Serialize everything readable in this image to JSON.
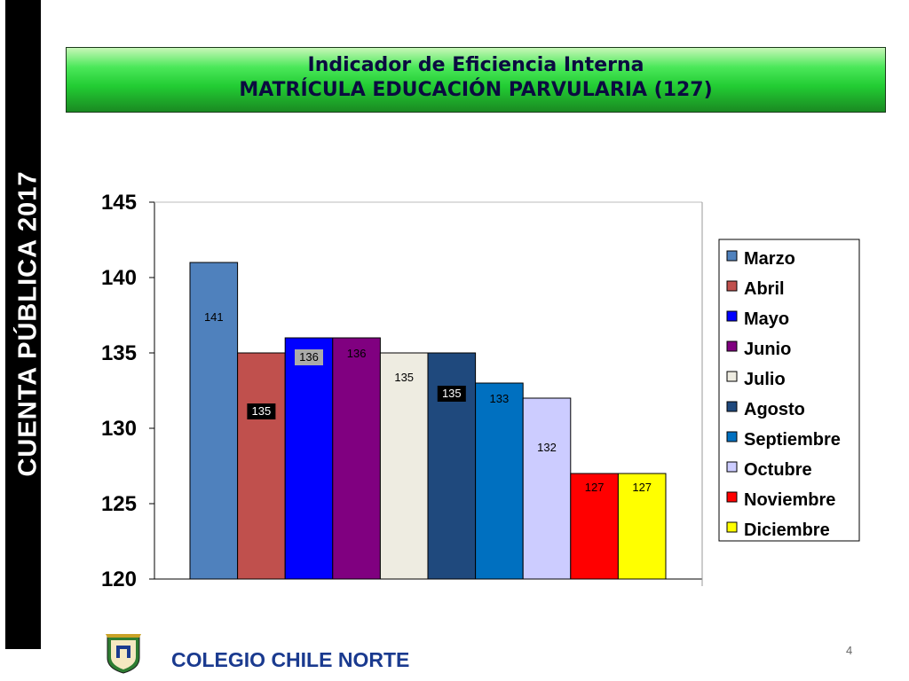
{
  "side_banner": "CUENTA  PÚBLICA  2017",
  "title": {
    "line1": "Indicador de Eficiencia Interna",
    "line2": "MATRÍCULA EDUCACIÓN PARVULARIA (127)"
  },
  "footer": {
    "school": "COLEGIO CHILE NORTE",
    "page": "4"
  },
  "chart_data": {
    "type": "bar",
    "title": "",
    "xlabel": "",
    "ylabel": "",
    "ylim": [
      120,
      145
    ],
    "yticks": [
      120,
      125,
      130,
      135,
      140,
      145
    ],
    "legend_position": "right",
    "grid": false,
    "series": [
      {
        "name": "Marzo",
        "value": 141,
        "color": "#4f81bd"
      },
      {
        "name": "Abril",
        "value": 135,
        "color": "#c0504d"
      },
      {
        "name": "Mayo",
        "value": 136,
        "color": "#0000ff"
      },
      {
        "name": "Junio",
        "value": 136,
        "color": "#800080"
      },
      {
        "name": "Julio",
        "value": 135,
        "color": "#eeece1"
      },
      {
        "name": "Agosto",
        "value": 135,
        "color": "#1f497d"
      },
      {
        "name": "Septiembre",
        "value": 133,
        "color": "#0070c0"
      },
      {
        "name": "Octubre",
        "value": 132,
        "color": "#ccccff"
      },
      {
        "name": "Noviembre",
        "value": 127,
        "color": "#ff0000"
      },
      {
        "name": "Diciembre",
        "value": 127,
        "color": "#ffff00"
      }
    ]
  }
}
